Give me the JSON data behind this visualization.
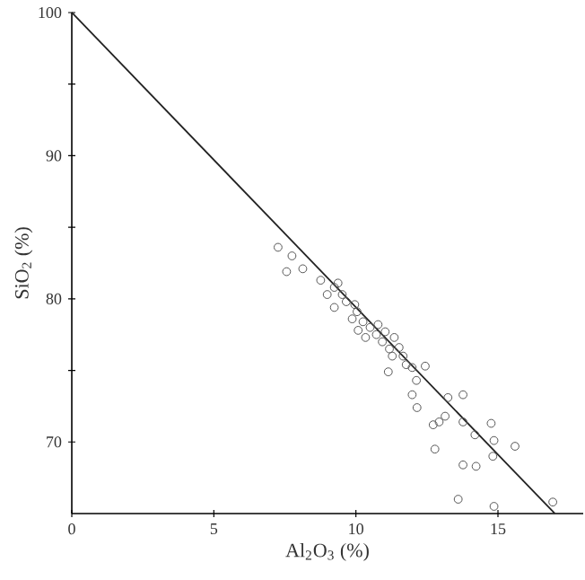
{
  "chart_data": {
    "type": "scatter",
    "xlabel": "Al$_{2}$O$_{3}$ (%)",
    "ylabel": "SiO$_{2}$ (%)",
    "xlim": [
      0,
      18
    ],
    "ylim": [
      65,
      100
    ],
    "xticks": [
      0,
      5,
      10,
      15
    ],
    "yticks": [
      {
        "value": 70,
        "label": "70"
      },
      {
        "value": 75,
        "label": null
      },
      {
        "value": 80,
        "label": "80"
      },
      {
        "value": 85,
        "label": null
      },
      {
        "value": 90,
        "label": "90"
      },
      {
        "value": 95,
        "label": null
      },
      {
        "value": 100,
        "label": "100"
      }
    ],
    "series": [
      {
        "marker": "circle",
        "color": "#555555",
        "x": [
          7.26,
          7.75,
          7.56,
          8.13,
          8.76,
          8.99,
          9.24,
          9.37,
          9.24,
          9.52,
          9.66,
          9.96,
          10.04,
          9.87,
          10.08,
          10.25,
          10.34,
          10.5,
          10.72,
          10.78,
          10.93,
          11.03,
          11.18,
          11.35,
          11.28,
          11.52,
          11.66,
          11.77,
          11.14,
          11.98,
          12.44,
          12.13,
          11.98,
          12.15,
          13.24,
          13.77,
          12.72,
          12.93,
          13.14,
          12.78,
          13.77,
          14.19,
          14.76,
          14.86,
          14.82,
          15.6,
          13.77,
          14.23,
          13.6,
          14.86,
          16.93
        ],
        "values": [
          83.6,
          83.0,
          81.9,
          82.1,
          81.3,
          80.3,
          80.8,
          81.1,
          79.4,
          80.3,
          79.8,
          79.6,
          79.1,
          78.6,
          77.8,
          78.4,
          77.3,
          78.0,
          77.5,
          78.2,
          77.0,
          77.7,
          76.5,
          77.3,
          76.0,
          76.6,
          76.0,
          75.4,
          74.9,
          75.2,
          75.3,
          74.3,
          73.3,
          72.4,
          73.1,
          73.3,
          71.2,
          71.4,
          71.8,
          69.5,
          71.4,
          70.5,
          71.3,
          70.1,
          69.0,
          69.7,
          68.4,
          68.3,
          66.0,
          65.5,
          65.8
        ]
      },
      {
        "type": "line",
        "marker": "none",
        "color": "#222222",
        "x": [
          0,
          17
        ],
        "values": [
          100,
          65
        ]
      }
    ]
  }
}
